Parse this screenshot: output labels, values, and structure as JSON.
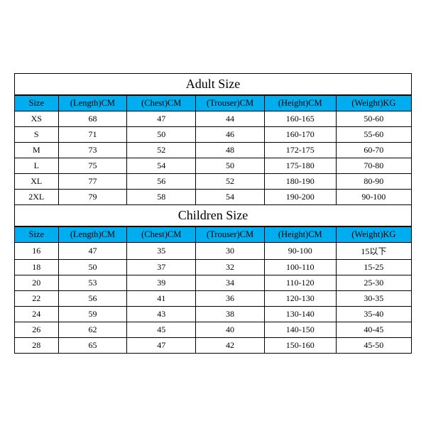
{
  "adult": {
    "title": "Adult Size",
    "columns": [
      "Size",
      "(Length)CM",
      "(Chest)CM",
      "(Trouser)CM",
      "(Height)CM",
      "(Weight)KG"
    ],
    "rows": [
      [
        "XS",
        "68",
        "47",
        "44",
        "160-165",
        "50-60"
      ],
      [
        "S",
        "71",
        "50",
        "46",
        "160-170",
        "55-60"
      ],
      [
        "M",
        "73",
        "52",
        "48",
        "172-175",
        "60-70"
      ],
      [
        "L",
        "75",
        "54",
        "50",
        "175-180",
        "70-80"
      ],
      [
        "XL",
        "77",
        "56",
        "52",
        "180-190",
        "80-90"
      ],
      [
        "2XL",
        "79",
        "58",
        "54",
        "190-200",
        "90-100"
      ]
    ]
  },
  "children": {
    "title": "Children Size",
    "columns": [
      "Size",
      "(Length)CM",
      "(Chest)CM",
      "(Trouser)CM",
      "(Height)CM",
      "(Weight)KG"
    ],
    "rows": [
      [
        "16",
        "47",
        "35",
        "30",
        "90-100",
        "15以下"
      ],
      [
        "18",
        "50",
        "37",
        "32",
        "100-110",
        "15-25"
      ],
      [
        "20",
        "53",
        "39",
        "34",
        "110-120",
        "25-30"
      ],
      [
        "22",
        "56",
        "41",
        "36",
        "120-130",
        "30-35"
      ],
      [
        "24",
        "59",
        "43",
        "38",
        "130-140",
        "35-40"
      ],
      [
        "26",
        "62",
        "45",
        "40",
        "140-150",
        "40-45"
      ],
      [
        "28",
        "65",
        "47",
        "42",
        "150-160",
        "45-50"
      ]
    ]
  },
  "style": {
    "header_bg": "#00aeef",
    "border_color": "#000000",
    "bg": "#ffffff",
    "font": "Times New Roman",
    "title_fontsize": 18,
    "cell_fontsize": 12
  }
}
